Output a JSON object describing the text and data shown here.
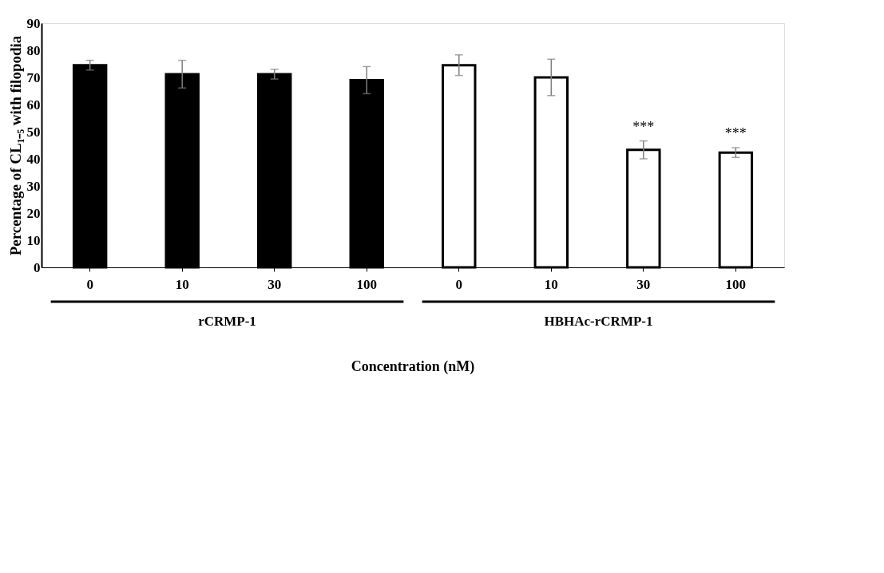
{
  "chart_data": {
    "type": "bar",
    "ylabel": "Percentage of CL₁₋₅ with filopodia",
    "categories": [
      "0",
      "10",
      "30",
      "100",
      "0",
      "10",
      "30",
      "100"
    ],
    "values": [
      74.5,
      71.2,
      71.2,
      69,
      74.5,
      70,
      43.3,
      42.3
    ],
    "errors": [
      1.8,
      5.1,
      1.8,
      5,
      3.8,
      6.7,
      3.3,
      1.8
    ],
    "colors": [
      "#000000",
      "#000000",
      "#000000",
      "#000000",
      "#ffffff",
      "#ffffff",
      "#ffffff",
      "#ffffff"
    ],
    "ylim": [
      0,
      90
    ],
    "yticks": [
      0,
      10,
      20,
      30,
      40,
      50,
      60,
      70,
      80,
      90
    ],
    "value_labels": [
      null,
      null,
      null,
      null,
      null,
      null,
      "***",
      "***"
    ],
    "annotations": [
      "rCRMP-1",
      "HBHAc-rCRMP-1",
      "Concentration (nM)"
    ]
  }
}
